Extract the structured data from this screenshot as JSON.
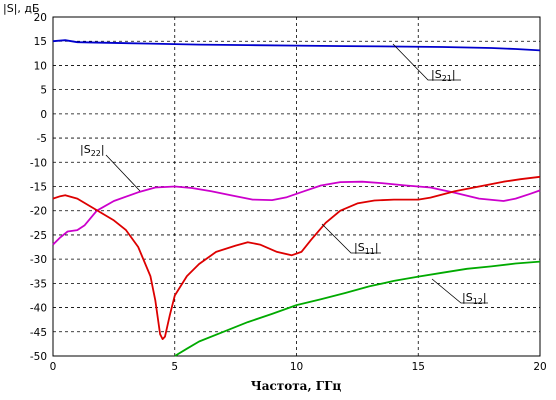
{
  "chart_data": {
    "type": "line",
    "ylabel": "|S|, дБ",
    "xlabel": "Частота, ГГц",
    "xlim": [
      0,
      20
    ],
    "ylim": [
      -50,
      20
    ],
    "x_ticks": [
      "0",
      "5",
      "10",
      "15",
      "20"
    ],
    "y_ticks": [
      "20",
      "15",
      "10",
      "5",
      "0",
      "-5",
      "-10",
      "-15",
      "-20",
      "-25",
      "-30",
      "-35",
      "-40",
      "-45",
      "-50"
    ],
    "grid": true,
    "series": [
      {
        "name": "S21",
        "color": "#0000cc",
        "x": [
          0,
          0.5,
          1,
          2,
          4,
          6,
          8,
          10,
          12,
          14,
          16,
          18,
          19,
          20
        ],
        "y": [
          15,
          15.2,
          14.8,
          14.7,
          14.5,
          14.3,
          14.2,
          14.1,
          14.0,
          13.9,
          13.8,
          13.6,
          13.4,
          13.1
        ]
      },
      {
        "name": "S22",
        "color": "#cc00cc",
        "x": [
          0,
          0.3,
          0.6,
          1.0,
          1.3,
          1.8,
          2.5,
          3.5,
          4.2,
          5.0,
          5.7,
          6.5,
          7.3,
          8.2,
          9.0,
          9.6,
          10.3,
          11.0,
          11.8,
          12.7,
          13.5,
          14.5,
          15.5,
          16.5,
          17.5,
          18.5,
          19.0,
          19.6,
          20.0
        ],
        "y": [
          -27,
          -25.5,
          -24.3,
          -24,
          -23,
          -20,
          -18,
          -16.2,
          -15.2,
          -15,
          -15.3,
          -16,
          -16.8,
          -17.7,
          -17.8,
          -17.2,
          -16,
          -14.8,
          -14.1,
          -14.0,
          -14.3,
          -14.8,
          -15.2,
          -16.3,
          -17.5,
          -18.0,
          -17.5,
          -16.5,
          -15.8
        ]
      },
      {
        "name": "S11",
        "color": "#dd0000",
        "x": [
          0,
          0.3,
          0.5,
          1.0,
          1.5,
          2.0,
          2.5,
          3.0,
          3.5,
          4.0,
          4.2,
          4.4,
          4.5,
          4.6,
          4.8,
          5.0,
          5.5,
          6.0,
          6.7,
          7.5,
          8.0,
          8.5,
          9.2,
          9.8,
          10.2,
          10.6,
          11.2,
          11.8,
          12.5,
          13.2,
          14.0,
          15.0,
          15.5,
          16.5,
          17.5,
          18.5,
          19.2,
          20.0
        ],
        "y": [
          -17.5,
          -17.0,
          -16.8,
          -17.5,
          -19.0,
          -20.5,
          -22.0,
          -24.0,
          -27.5,
          -33.5,
          -38.5,
          -45.5,
          -46.5,
          -46.0,
          -41.5,
          -37.5,
          -33.5,
          -31.0,
          -28.5,
          -27.2,
          -26.5,
          -27.0,
          -28.5,
          -29.2,
          -28.5,
          -26.0,
          -22.5,
          -20.0,
          -18.5,
          -17.9,
          -17.7,
          -17.7,
          -17.3,
          -16.0,
          -15.0,
          -14.0,
          -13.5,
          -13.0
        ]
      },
      {
        "name": "S12",
        "color": "#00aa00",
        "x": [
          5.0,
          5.5,
          6.0,
          7.0,
          8.0,
          9.0,
          10.0,
          11.0,
          12.0,
          13.0,
          14.0,
          15.0,
          16.0,
          17.0,
          18.0,
          19.0,
          20.0
        ],
        "y": [
          -50.0,
          -48.5,
          -47.0,
          -45.0,
          -43.0,
          -41.3,
          -39.5,
          -38.3,
          -37.0,
          -35.6,
          -34.5,
          -33.6,
          -32.8,
          -32.0,
          -31.5,
          -30.9,
          -30.5
        ]
      }
    ],
    "annotations": [
      {
        "series": "S21",
        "main": "|S",
        "sub": "21",
        "close": "|"
      },
      {
        "series": "S22",
        "main": "|S",
        "sub": "22",
        "close": "|"
      },
      {
        "series": "S11",
        "main": "|S",
        "sub": "11",
        "close": "|"
      },
      {
        "series": "S12",
        "main": "|S",
        "sub": "12",
        "close": "|"
      }
    ]
  }
}
